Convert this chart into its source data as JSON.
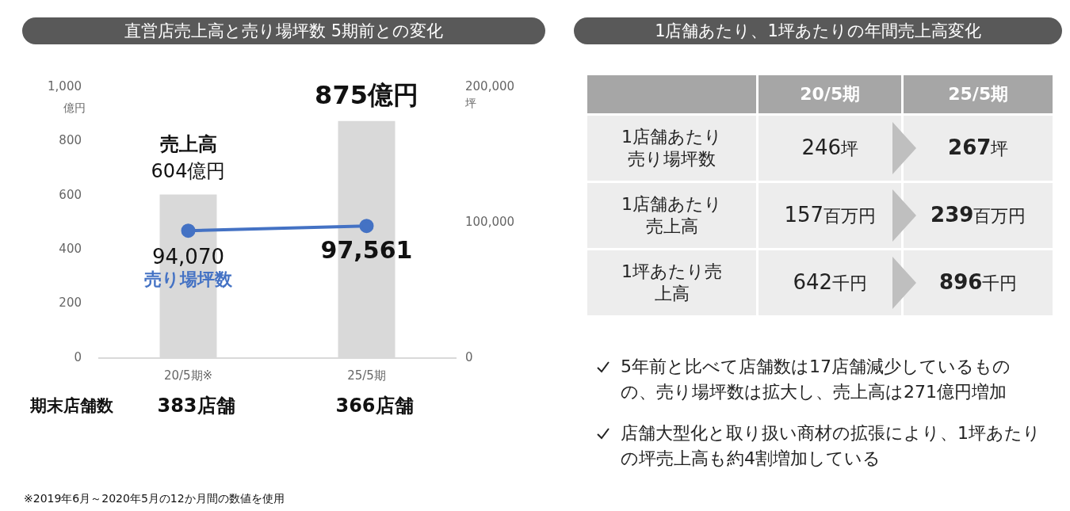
{
  "chart_data": [
    {
      "type": "bar",
      "title": "直営店売上高と売り場坪数 5期前との変化",
      "categories": [
        "20/5期※",
        "25/5期"
      ],
      "ylabel": "億円",
      "y2label": "坪",
      "series": [
        {
          "name": "売上高",
          "type": "bar",
          "color": "#d9d9d9",
          "values": [
            604,
            875
          ],
          "value_labels": [
            "604億円",
            "875億円"
          ]
        },
        {
          "name": "売り場坪数",
          "type": "line",
          "axis": "y2",
          "color": "#4472c4",
          "values": [
            94070,
            97561
          ],
          "value_labels": [
            "94,070",
            "97,561"
          ]
        }
      ],
      "ylim": [
        0,
        1000
      ],
      "yticks": [
        0,
        200,
        400,
        600,
        800,
        {
          "value": 1000,
          "label": "1,000"
        }
      ],
      "y2lim": [
        0,
        200000
      ],
      "y2ticks": [
        0,
        {
          "value": 100000,
          "label": "100,000"
        },
        {
          "value": 200000,
          "label": "200,000"
        }
      ],
      "marker": "circle",
      "grid": false,
      "legend": false,
      "annotations": [
        "期末店舗数",
        "383店舗",
        "366店舗",
        "※2019年6月～2020年5月の12か月間の数値を使用"
      ]
    },
    {
      "type": "other",
      "title": "1店舗あたり、1坪あたりの年間売上高変化",
      "annotations": [
        "20/5期",
        "25/5期",
        "1店舗あたり売り場坪数",
        "246坪",
        "267坪",
        "1店舗あたり売上高",
        "157百万円",
        "239百万円",
        "1坪あたり売上高",
        "642千円",
        "896千円",
        "5年前と比べて店舗数は17店舗減少しているものの、売り場坪数は拡大し、売上高は271億円増加",
        "店舗大型化と取り扱い商材の拡張により、1坪あたりの坪売上高も約4割増加している"
      ]
    }
  ]
}
